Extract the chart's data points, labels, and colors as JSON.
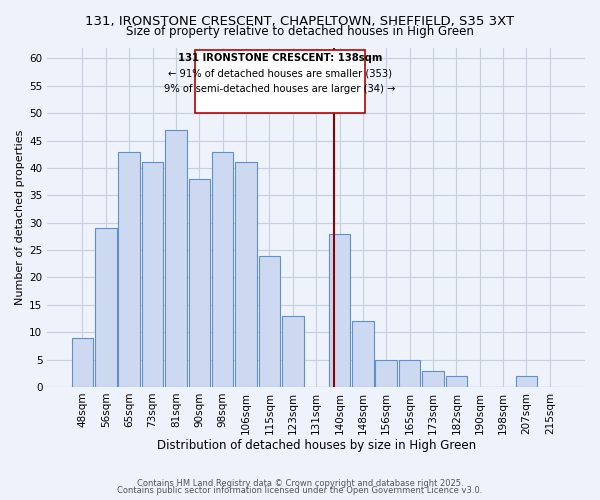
{
  "title": "131, IRONSTONE CRESCENT, CHAPELTOWN, SHEFFIELD, S35 3XT",
  "subtitle": "Size of property relative to detached houses in High Green",
  "xlabel": "Distribution of detached houses by size in High Green",
  "ylabel": "Number of detached properties",
  "bar_labels": [
    "48sqm",
    "56sqm",
    "65sqm",
    "73sqm",
    "81sqm",
    "90sqm",
    "98sqm",
    "106sqm",
    "115sqm",
    "123sqm",
    "131sqm",
    "140sqm",
    "148sqm",
    "156sqm",
    "165sqm",
    "173sqm",
    "182sqm",
    "190sqm",
    "198sqm",
    "207sqm",
    "215sqm"
  ],
  "bar_values": [
    9,
    29,
    43,
    41,
    47,
    38,
    43,
    41,
    24,
    13,
    0,
    28,
    12,
    5,
    5,
    3,
    2,
    0,
    0,
    2,
    0
  ],
  "bar_color": "#ccd9f0",
  "bar_edge_color": "#6090c8",
  "background_color": "#eef2fa",
  "grid_color": "#c5cfe0",
  "marker_line_color": "#8b0000",
  "annotation_line1": "131 IRONSTONE CRESCENT: 138sqm",
  "annotation_line2": "← 91% of detached houses are smaller (353)",
  "annotation_line3": "9% of semi-detached houses are larger (34) →",
  "ylim": [
    0,
    62
  ],
  "yticks": [
    0,
    5,
    10,
    15,
    20,
    25,
    30,
    35,
    40,
    45,
    50,
    55,
    60
  ],
  "footer1": "Contains HM Land Registry data © Crown copyright and database right 2025.",
  "footer2": "Contains public sector information licensed under the Open Government Licence v3.0.",
  "title_fontsize": 9.5,
  "subtitle_fontsize": 8.5,
  "xlabel_fontsize": 8.5,
  "ylabel_fontsize": 8,
  "tick_fontsize": 7.5,
  "footer_fontsize": 6.0,
  "annot_fontsize": 7.2
}
